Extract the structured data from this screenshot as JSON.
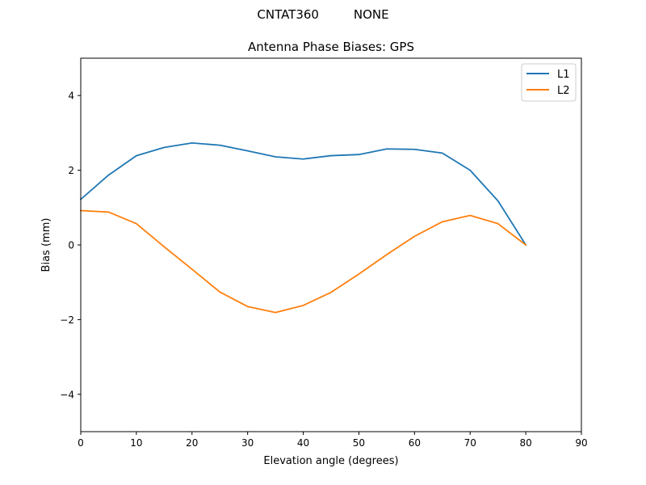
{
  "figure": {
    "suptitle": "CNTAT360         NONE"
  },
  "chart_data": {
    "type": "line",
    "title": "Antenna Phase Biases: GPS",
    "xlabel": "Elevation angle (degrees)",
    "ylabel": "Bias (mm)",
    "xlim": [
      0,
      90
    ],
    "ylim": [
      -5,
      5
    ],
    "xticks": [
      0,
      10,
      20,
      30,
      40,
      50,
      60,
      70,
      80,
      90
    ],
    "yticks": [
      -4,
      -2,
      0,
      2,
      4
    ],
    "ytick_labels": [
      "−4",
      "−2",
      "0",
      "2",
      "4"
    ],
    "grid": false,
    "legend_position": "top-right",
    "x": [
      0,
      5,
      10,
      15,
      20,
      25,
      30,
      35,
      40,
      45,
      50,
      55,
      60,
      65,
      70,
      75,
      80
    ],
    "series": [
      {
        "name": "L1",
        "color": "#1f77b4",
        "values": [
          1.22,
          1.87,
          2.39,
          2.61,
          2.73,
          2.67,
          2.52,
          2.36,
          2.3,
          2.39,
          2.42,
          2.57,
          2.56,
          2.46,
          2.0,
          1.18,
          0.0
        ]
      },
      {
        "name": "L2",
        "color": "#ff7f0e",
        "values": [
          0.92,
          0.88,
          0.57,
          -0.05,
          -0.65,
          -1.26,
          -1.65,
          -1.81,
          -1.62,
          -1.27,
          -0.78,
          -0.26,
          0.23,
          0.62,
          0.79,
          0.57,
          0.0
        ]
      }
    ]
  }
}
